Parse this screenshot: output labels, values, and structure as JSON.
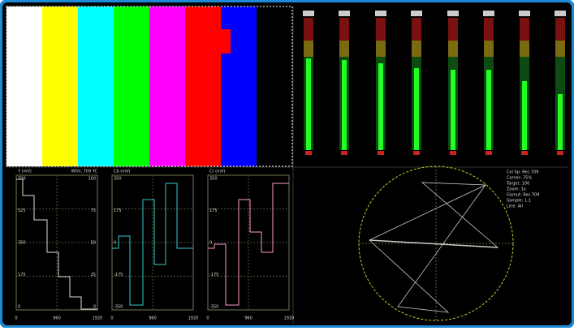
{
  "waveforms": [
    {
      "title": "Y (mV)",
      "mode": "Wfm: 709 YC",
      "left_labels": [
        "700",
        "525",
        "350",
        "175",
        "0"
      ],
      "right_labels": [
        "100",
        "75",
        "50",
        "25",
        "0"
      ],
      "x_labels": [
        "0",
        "960",
        "1920"
      ]
    },
    {
      "title": "Cb (mV)",
      "mode": "",
      "left_labels": [
        "350",
        "175",
        "0",
        "-175",
        "-350"
      ],
      "right_labels": [],
      "x_labels": [
        "0",
        "960",
        "1920"
      ]
    },
    {
      "title": "Cr (mV)",
      "mode": "",
      "left_labels": [
        "350",
        "175",
        "0",
        "-175",
        "-350"
      ],
      "right_labels": [],
      "x_labels": [
        "0",
        "960",
        "1920"
      ]
    }
  ],
  "vectorscope": {
    "info": [
      "Col Sp: Rec.709",
      "Corner: 75%",
      "Target: 100",
      "Zoom: 1x",
      "Gamut: Rec.709",
      "Sample: 1:1",
      "Line: All"
    ]
  }
}
